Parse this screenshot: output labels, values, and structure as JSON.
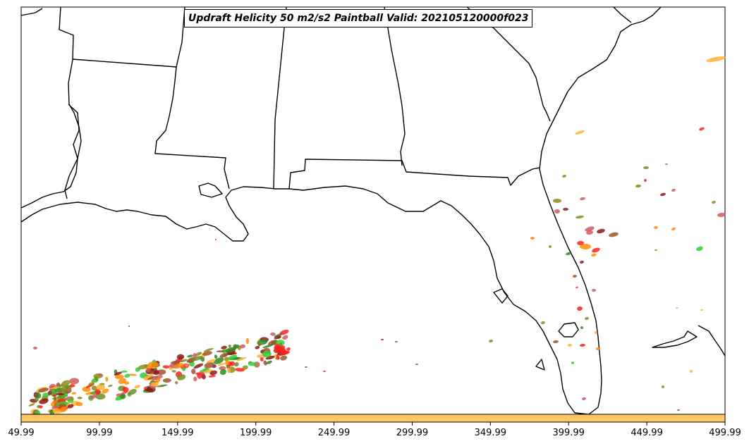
{
  "title": "Updraft Helicity 50 m2/s2 Paintball Valid: 202105120000f023",
  "x_axis": {
    "ticks": [
      "49.99",
      "99.99",
      "149.99",
      "199.99",
      "249.99",
      "299.99",
      "349.99",
      "399.99",
      "449.99",
      "499.99"
    ]
  },
  "colorbar": {
    "color": "#ffc864"
  },
  "colors": {
    "land_line": "#000000",
    "paint": [
      "#8b1a1a",
      "#ff2020",
      "#ff8c00",
      "#ffb030",
      "#2e8b22",
      "#32cd32",
      "#8b8b1a",
      "#a0522d",
      "#cd5c5c",
      "#6b8e23"
    ]
  }
}
